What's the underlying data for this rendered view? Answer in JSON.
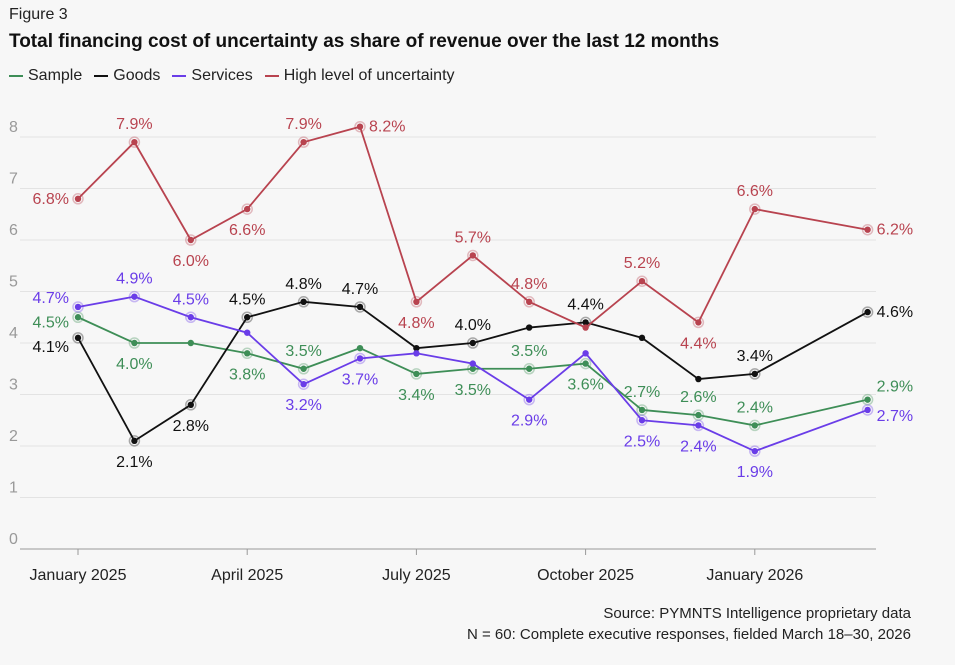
{
  "figure_label": "Figure 3",
  "chart_data": {
    "type": "line",
    "title": "Total financing cost of uncertainty as share of revenue over the last 12 months",
    "x": [
      "2025-01",
      "2025-02",
      "2025-03",
      "2025-04",
      "2025-05",
      "2025-06",
      "2025-07",
      "2025-08",
      "2025-09",
      "2025-10",
      "2025-11",
      "2025-12",
      "2026-01",
      "2026-03"
    ],
    "x_ticks": [
      "January 2025",
      "April 2025",
      "July 2025",
      "October 2025",
      "January 2026"
    ],
    "y_ticks": [
      "0",
      "1",
      "2",
      "3",
      "4",
      "5",
      "6",
      "7",
      "8"
    ],
    "ylim": [
      0,
      8
    ],
    "grid": true,
    "legend_position": "top-left",
    "series": [
      {
        "name": "Sample",
        "color": "#3e8e57",
        "values": [
          4.5,
          4.0,
          4.0,
          3.8,
          3.5,
          3.9,
          3.4,
          3.5,
          3.5,
          3.6,
          2.7,
          2.6,
          2.4,
          2.9
        ],
        "labels": [
          "4.5%",
          "4.0%",
          null,
          "3.8%",
          "3.5%",
          null,
          "3.4%",
          "3.5%",
          "3.5%",
          "3.6%",
          "2.7%",
          "2.6%",
          "2.4%",
          "2.9%"
        ]
      },
      {
        "name": "Goods",
        "color": "#111111",
        "values": [
          4.1,
          2.1,
          2.8,
          4.5,
          4.8,
          4.7,
          3.9,
          4.0,
          4.3,
          4.4,
          4.1,
          3.3,
          3.4,
          4.6
        ],
        "labels": [
          "4.1%",
          "2.1%",
          "2.8%",
          "4.5%",
          "4.8%",
          "4.7%",
          null,
          "4.0%",
          null,
          "4.4%",
          null,
          null,
          "3.4%",
          "4.6%"
        ]
      },
      {
        "name": "Services",
        "color": "#6a3de8",
        "values": [
          4.7,
          4.9,
          4.5,
          4.2,
          3.2,
          3.7,
          3.8,
          3.6,
          2.9,
          3.8,
          2.5,
          2.4,
          1.9,
          2.7
        ],
        "labels": [
          "4.7%",
          "4.9%",
          "4.5%",
          null,
          "3.2%",
          "3.7%",
          null,
          null,
          "2.9%",
          null,
          "2.5%",
          "2.4%",
          "1.9%",
          "2.7%"
        ]
      },
      {
        "name": "High level of uncertainty",
        "color": "#b8434f",
        "values": [
          6.8,
          7.9,
          6.0,
          6.6,
          7.9,
          8.2,
          4.8,
          5.7,
          4.8,
          4.3,
          5.2,
          4.4,
          6.6,
          6.2
        ],
        "labels": [
          "6.8%",
          "7.9%",
          "6.0%",
          "6.6%",
          "7.9%",
          "8.2%",
          "4.8%",
          "5.7%",
          "4.8%",
          null,
          "5.2%",
          "4.4%",
          "6.6%",
          "6.2%"
        ]
      }
    ]
  },
  "source": "Source: PYMNTS Intelligence proprietary data",
  "note": "N = 60: Complete executive responses, fielded March 18–30, 2026"
}
